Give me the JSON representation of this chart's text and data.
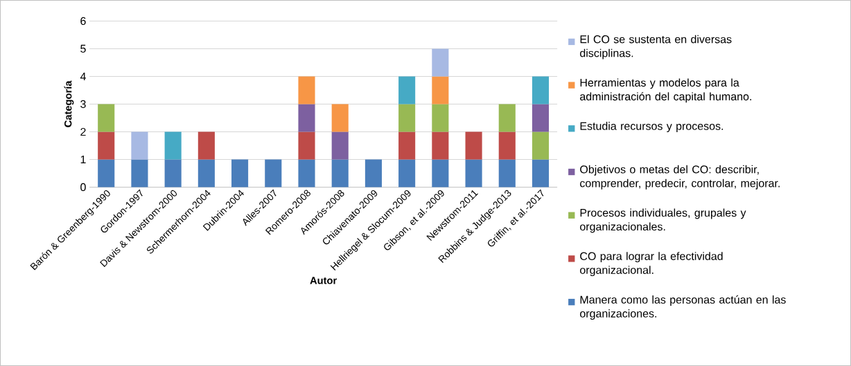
{
  "chart_data": {
    "type": "bar",
    "stacked": true,
    "xlabel": "Autor",
    "ylabel": "Categoría",
    "categories": [
      "Barón & Greenberg-1990",
      "Gordon-1997",
      "Davis & Newstrom-2000",
      "Schermerhorn-2004",
      "Dubrin-2004",
      "Alles-2007",
      "Romero-2008",
      "Amorós-2008",
      "Chiavenato-2009",
      "Hellriegel & Slocum-2009",
      "Gibson, et al.-2009",
      "Newstrom-2011",
      "Robbins & Judge-2013",
      "Griffin, et al.-2017"
    ],
    "series": [
      {
        "name": "Manera como las personas actúan en las organizaciones.",
        "color": "#4a7ebb",
        "values": [
          1,
          1,
          1,
          1,
          1,
          1,
          1,
          1,
          1,
          1,
          1,
          1,
          1,
          1
        ]
      },
      {
        "name": "CO para lograr la efectividad organizacional.",
        "color": "#be4b48",
        "values": [
          1,
          null,
          null,
          1,
          null,
          null,
          1,
          null,
          null,
          1,
          1,
          1,
          1,
          null
        ]
      },
      {
        "name": "Procesos individuales, grupales y organizacionales.",
        "color": "#98b954",
        "values": [
          1,
          null,
          null,
          null,
          null,
          null,
          null,
          null,
          null,
          1,
          1,
          null,
          1,
          1
        ]
      },
      {
        "name": "Objetivos o metas del CO: describir, comprender, predecir, controlar, mejorar.",
        "color": "#7d60a0",
        "values": [
          null,
          null,
          null,
          null,
          null,
          null,
          1,
          1,
          null,
          null,
          null,
          null,
          null,
          1
        ]
      },
      {
        "name": "Estudia recursos y procesos.",
        "color": "#46aac5",
        "values": [
          null,
          null,
          1,
          null,
          null,
          null,
          null,
          null,
          null,
          1,
          null,
          null,
          null,
          1
        ]
      },
      {
        "name": "Herramientas y modelos para la administración del capital humano.",
        "color": "#f79646",
        "values": [
          null,
          null,
          null,
          null,
          null,
          null,
          1,
          1,
          null,
          null,
          1,
          null,
          null,
          null
        ]
      },
      {
        "name": "El CO se sustenta en diversas disciplinas.",
        "color": "#a7b9e3",
        "values": [
          null,
          1,
          null,
          null,
          null,
          null,
          null,
          null,
          null,
          null,
          1,
          null,
          null,
          null
        ]
      }
    ],
    "ylim": [
      0,
      6
    ],
    "yticks": [
      0,
      1,
      2,
      3,
      4,
      5,
      6
    ],
    "grid": "y",
    "legend": "right"
  }
}
